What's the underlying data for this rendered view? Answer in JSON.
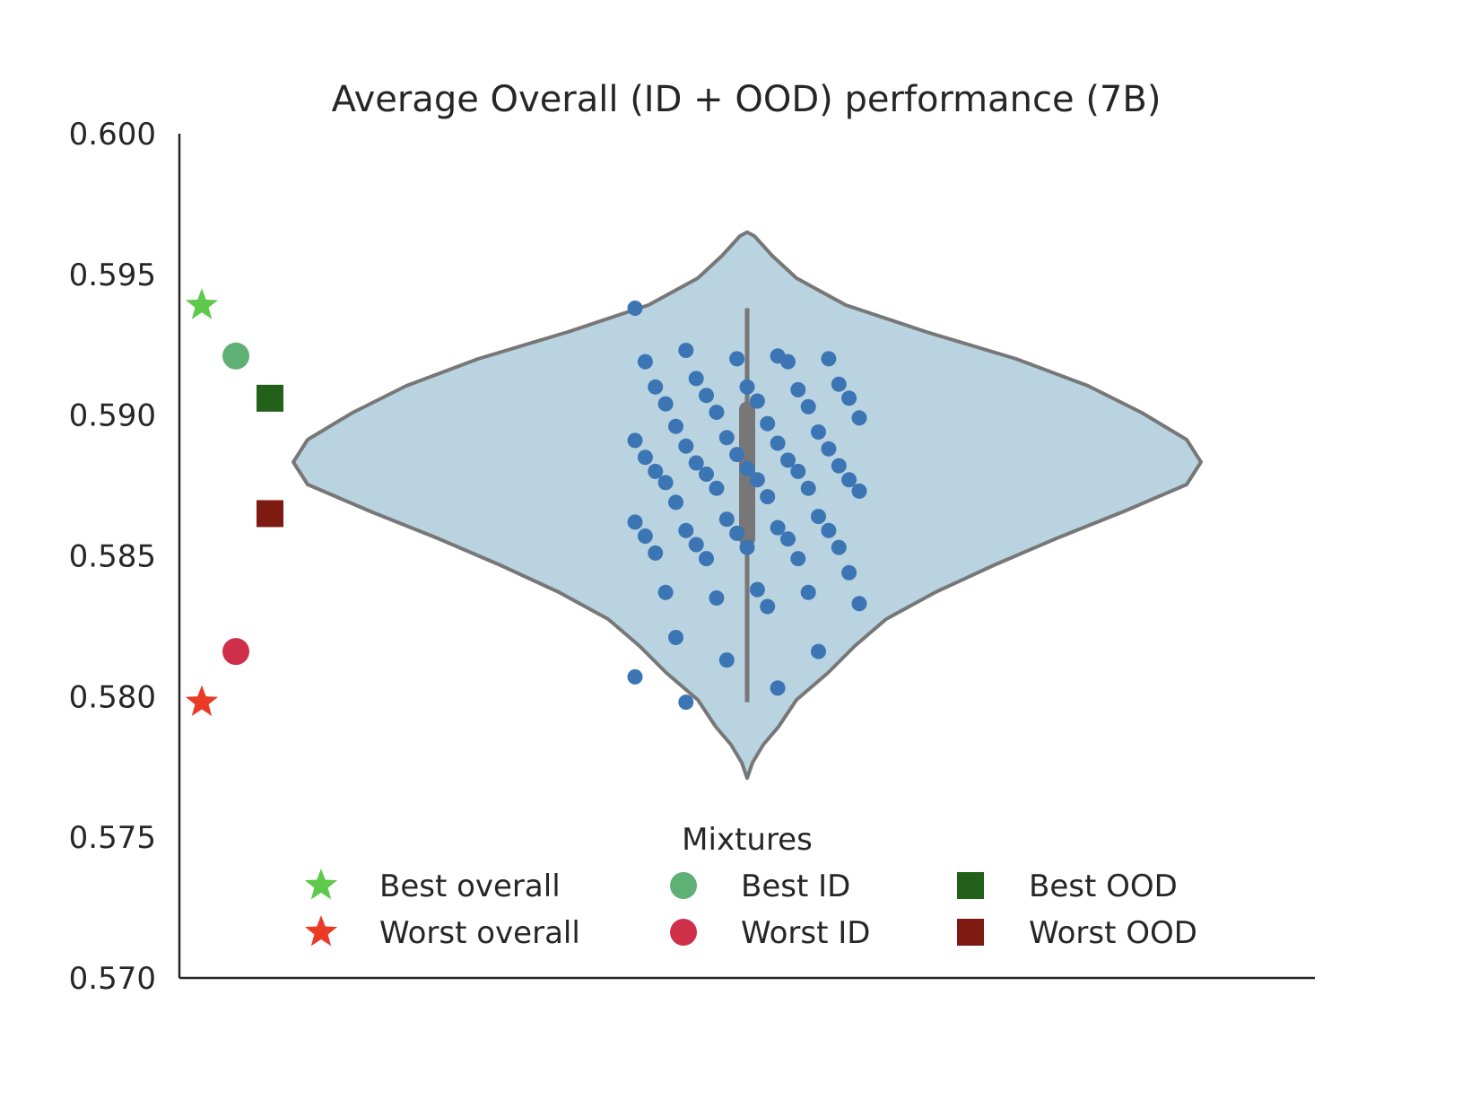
{
  "chart_data": {
    "type": "violin",
    "title": "Average Overall (ID + OOD) performance (7B)",
    "xlabel": "",
    "ylabel": "",
    "ylim": [
      0.57,
      0.6
    ],
    "y_ticks": [
      "0.600",
      "0.595",
      "0.590",
      "0.585",
      "0.580",
      "0.575",
      "0.570"
    ],
    "y_tick_values": [
      0.6,
      0.595,
      0.59,
      0.585,
      0.58,
      0.575,
      0.57
    ],
    "grid": false,
    "violin": {
      "fill": "#bad3e0",
      "edge": "#777777",
      "range": [
        0.5771,
        0.5965
      ],
      "median": 0.588,
      "q1": 0.5856,
      "q3": 0.5902,
      "whisker_low": 0.5798,
      "whisker_high": 0.5938
    },
    "points_color": "#3b75b4",
    "points": [
      0.5938,
      0.5921,
      0.5923,
      0.592,
      0.592,
      0.5919,
      0.5919,
      0.5913,
      0.5911,
      0.591,
      0.591,
      0.5909,
      0.5907,
      0.5906,
      0.5905,
      0.5904,
      0.5903,
      0.5901,
      0.5899,
      0.5897,
      0.5896,
      0.5894,
      0.5892,
      0.5891,
      0.589,
      0.5889,
      0.5888,
      0.5886,
      0.5885,
      0.5884,
      0.5883,
      0.5882,
      0.5881,
      0.588,
      0.588,
      0.5879,
      0.5877,
      0.5877,
      0.5876,
      0.5874,
      0.5874,
      0.5873,
      0.5871,
      0.5869,
      0.5864,
      0.5863,
      0.5862,
      0.586,
      0.5859,
      0.5859,
      0.5858,
      0.5857,
      0.5856,
      0.5854,
      0.5853,
      0.5853,
      0.5851,
      0.5849,
      0.5849,
      0.5844,
      0.5838,
      0.5837,
      0.5837,
      0.5835,
      0.5833,
      0.5832,
      0.5821,
      0.5816,
      0.5813,
      0.5807,
      0.5803,
      0.5798
    ],
    "reference_markers": [
      {
        "label": "Best overall",
        "marker": "star",
        "color": "#5ec94a",
        "value": 0.5939
      },
      {
        "label": "Best ID",
        "marker": "circle",
        "color": "#5fb075",
        "value": 0.5921
      },
      {
        "label": "Best OOD",
        "marker": "square",
        "color": "#23601a",
        "value": 0.5906
      },
      {
        "label": "Worst OOD",
        "marker": "square",
        "color": "#7d1a12",
        "value": 0.5865
      },
      {
        "label": "Worst ID",
        "marker": "circle",
        "color": "#cf3049",
        "value": 0.5816
      },
      {
        "label": "Worst overall",
        "marker": "star",
        "color": "#ea3b27",
        "value": 0.5798
      }
    ],
    "legend": {
      "title": "Mixtures",
      "placement": "bottom-center",
      "entries": [
        {
          "label": "Best overall",
          "marker": "star",
          "color": "#5ec94a"
        },
        {
          "label": "Worst overall",
          "marker": "star",
          "color": "#ea3b27"
        },
        {
          "label": "Best ID",
          "marker": "circle",
          "color": "#5fb075"
        },
        {
          "label": "Worst ID",
          "marker": "circle",
          "color": "#cf3049"
        },
        {
          "label": "Best OOD",
          "marker": "square",
          "color": "#23601a"
        },
        {
          "label": "Worst OOD",
          "marker": "square",
          "color": "#7d1a12"
        }
      ]
    }
  }
}
